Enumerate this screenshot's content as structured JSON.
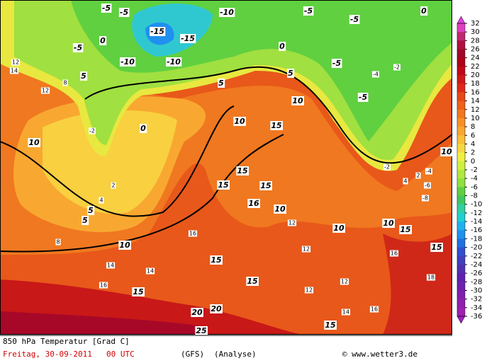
{
  "map": {
    "title": "850 hPa Temperatur [Grad C]",
    "date": "Freitag, 30-09-2011",
    "time": "00 UTC",
    "model": "(GFS)",
    "run": "(Analyse)",
    "credit": "© www.wetter3.de",
    "colorbar": {
      "ticks": [
        32,
        30,
        28,
        26,
        24,
        22,
        20,
        18,
        16,
        14,
        12,
        10,
        8,
        6,
        4,
        2,
        0,
        -2,
        -4,
        -6,
        -8,
        -10,
        -12,
        -14,
        -16,
        -18,
        -20,
        -22,
        -24,
        -26,
        -28,
        -30,
        -32,
        -34,
        -36
      ],
      "colors": [
        "#e040c0",
        "#c02870",
        "#b01040",
        "#a00828",
        "#b00018",
        "#c00818",
        "#d01818",
        "#e02818",
        "#e84818",
        "#f06018",
        "#f07820",
        "#f89028",
        "#f8a830",
        "#f8c038",
        "#f8d840",
        "#f0f040",
        "#d0f040",
        "#b0e840",
        "#90e040",
        "#60d040",
        "#40c860",
        "#30d0a0",
        "#20d0d0",
        "#20b0f0",
        "#2090f0",
        "#2070e0",
        "#3050d0",
        "#4040c0",
        "#5030b0",
        "#6020b0",
        "#7020b0",
        "#8020b0",
        "#9020b0",
        "#a020b0"
      ]
    },
    "contour_labels": [
      "-5",
      "-5",
      "-10",
      "-5",
      "-5",
      "0",
      "-15",
      "-15",
      "-10",
      "-10",
      "-5",
      "0",
      "0",
      "5",
      "5",
      "5",
      "-5",
      "-5",
      "0",
      "10",
      "10",
      "15",
      "10",
      "10",
      "15",
      "15",
      "15",
      "16",
      "10",
      "5",
      "5",
      "10",
      "10",
      "10",
      "15",
      "15",
      "15",
      "15",
      "15",
      "20",
      "20",
      "25",
      "15",
      "12",
      "14",
      "12",
      "8",
      "2",
      "4",
      "8",
      "14",
      "14",
      "16",
      "16",
      "12",
      "12",
      "12",
      "12",
      "14",
      "16",
      "16",
      "18",
      "-2",
      "-4",
      "-2",
      "-2",
      "-4",
      "-6",
      "-8",
      "2",
      "4"
    ]
  }
}
